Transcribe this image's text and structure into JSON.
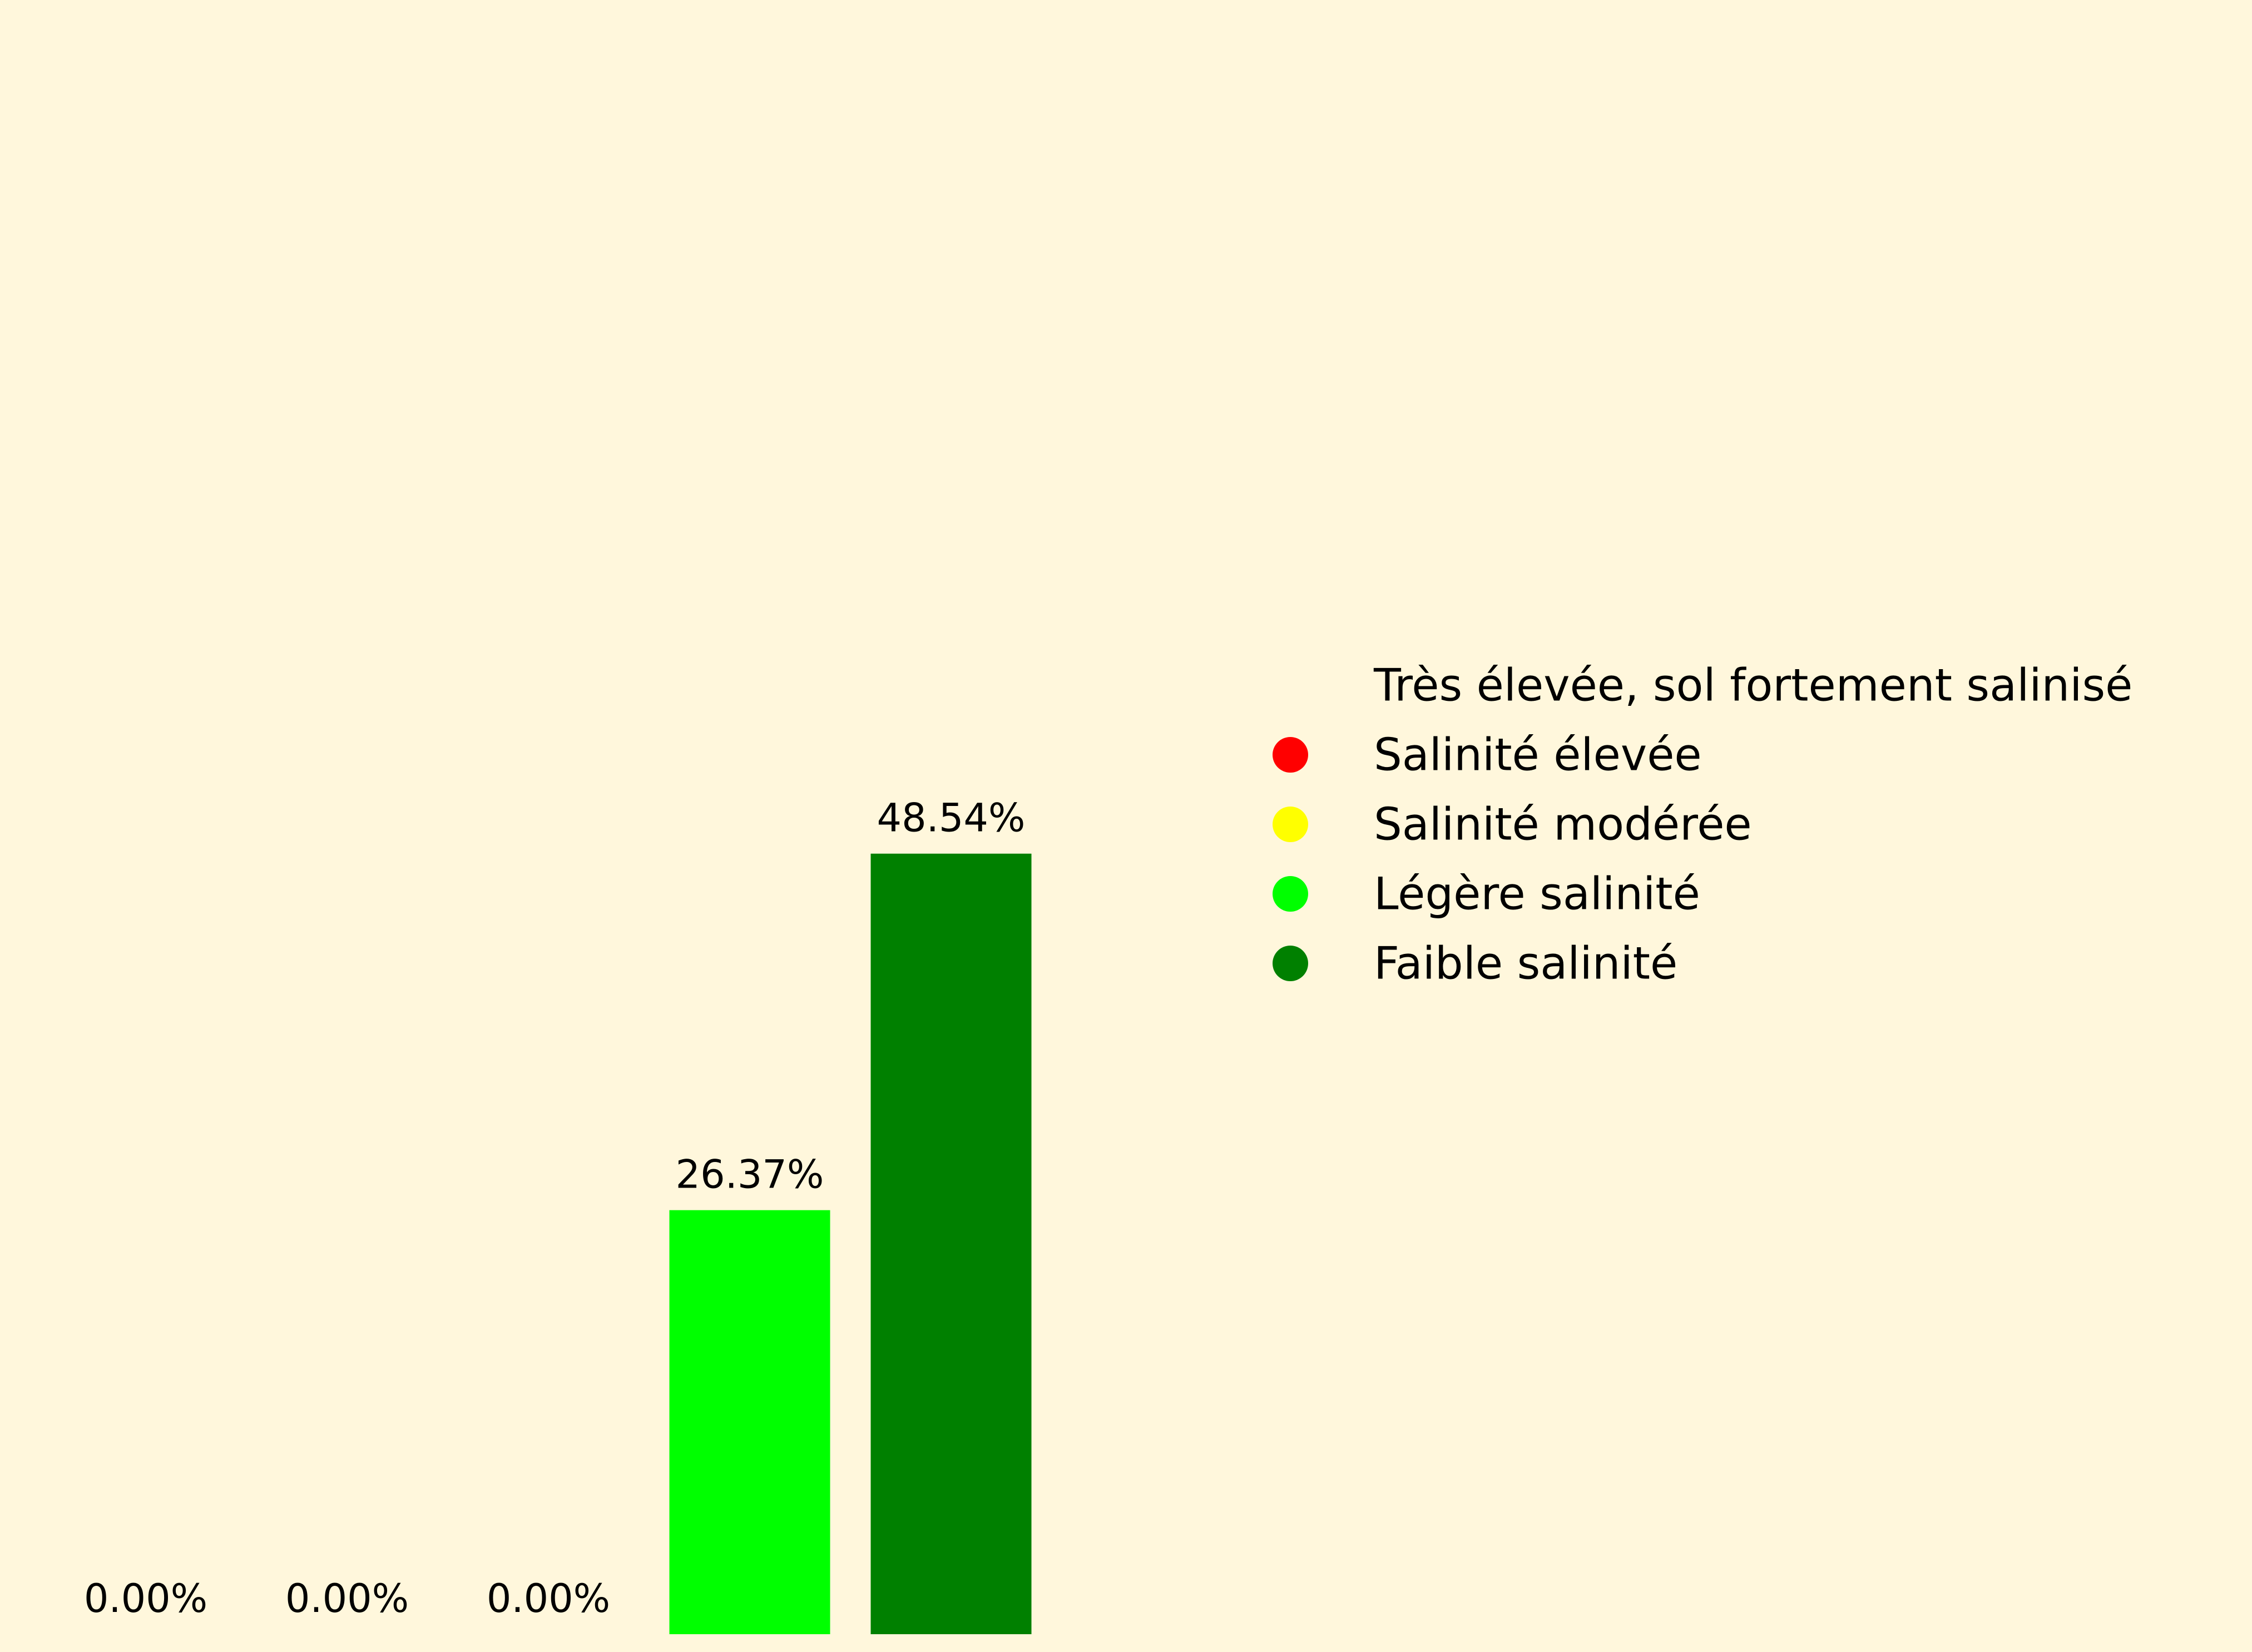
{
  "chart_data": {
    "type": "bar",
    "categories": [
      "Très élevée, sol fortement salinisé",
      "Salinité élevée",
      "Salinité modérée",
      "Légère salinité",
      "Faible salinité"
    ],
    "values": [
      0.0,
      0.0,
      0.0,
      26.37,
      48.54
    ],
    "value_labels": [
      "0.00%",
      "0.00%",
      "0.00%",
      "26.37%",
      "48.54%"
    ],
    "colors": [
      "#fff7dc",
      "#ff0000",
      "#ffff00",
      "#00ff00",
      "#008000"
    ],
    "unit": "%",
    "ylim": [
      0,
      100
    ],
    "grid": false,
    "axes_visible": false,
    "legend": {
      "placement": "right",
      "marker": "circle",
      "entries": [
        {
          "label": "Très élevée, sol fortement salinisé",
          "color": "#fff7dc"
        },
        {
          "label": "Salinité élevée",
          "color": "#ff0000"
        },
        {
          "label": "Salinité modérée",
          "color": "#ffff00"
        },
        {
          "label": "Légère salinité",
          "color": "#00ff00"
        },
        {
          "label": "Faible salinité",
          "color": "#008000"
        }
      ]
    }
  },
  "colors": {
    "background": "#fff7dc",
    "text": "#000000"
  }
}
